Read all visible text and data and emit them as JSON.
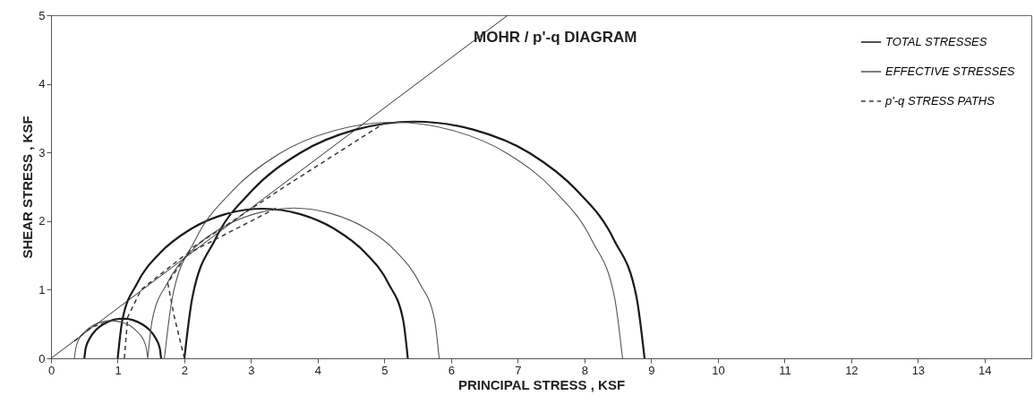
{
  "chart_data": {
    "type": "line",
    "title": "MOHR  / p'-q DIAGRAM",
    "xlabel": "PRINCIPAL STRESS , KSF",
    "ylabel": "SHEAR STRESS , KSF",
    "xlim": [
      0,
      14.7
    ],
    "xticks": [
      0,
      1,
      2,
      3,
      4,
      5,
      6,
      7,
      8,
      9,
      10,
      11,
      12,
      13,
      14
    ],
    "ylim": [
      0,
      5
    ],
    "yticks": [
      0,
      1,
      2,
      3,
      4,
      5
    ],
    "grid": false,
    "legend": "top right",
    "marker": "none",
    "series": [
      {
        "name": "TOTAL STRESSES",
        "color": "#1a1a1a",
        "line_style": "solid",
        "x": [
          0.5,
          0.52,
          0.58,
          0.67,
          0.79,
          0.93,
          1.08,
          1.22,
          1.36,
          1.48,
          1.57,
          1.63,
          1.65,
          null,
          1.0,
          1.07,
          1.29,
          1.64,
          2.09,
          2.61,
          3.18,
          3.74,
          4.26,
          4.71,
          5.06,
          5.28,
          5.35,
          null,
          2.0,
          2.12,
          2.46,
          3.01,
          3.73,
          4.56,
          5.45,
          6.34,
          7.18,
          7.89,
          8.44,
          8.78,
          8.9
        ],
        "values": [
          0,
          0.15,
          0.29,
          0.41,
          0.5,
          0.56,
          0.58,
          0.56,
          0.5,
          0.41,
          0.29,
          0.15,
          0,
          null,
          0,
          0.56,
          1.09,
          1.54,
          1.88,
          2.1,
          2.18,
          2.1,
          1.88,
          1.54,
          1.09,
          0.56,
          0,
          null,
          0,
          0.89,
          1.73,
          2.44,
          2.99,
          3.33,
          3.45,
          3.33,
          2.99,
          2.44,
          1.73,
          0.89,
          0
        ]
      },
      {
        "name": "EFFECTIVE STRESSES",
        "color": "#555555",
        "line_style": "solid",
        "x": [
          0.35,
          0.37,
          0.42,
          0.51,
          0.63,
          0.76,
          0.9,
          1.04,
          1.18,
          1.29,
          1.38,
          1.43,
          1.45,
          null,
          1.45,
          1.52,
          1.74,
          2.09,
          2.54,
          3.07,
          3.64,
          4.2,
          4.73,
          5.18,
          5.53,
          5.75,
          5.82,
          null,
          1.7,
          1.82,
          2.16,
          2.71,
          3.42,
          4.25,
          5.14,
          6.03,
          6.85,
          7.56,
          8.11,
          8.45,
          8.57
        ],
        "values": [
          0,
          0.14,
          0.28,
          0.39,
          0.48,
          0.53,
          0.55,
          0.53,
          0.48,
          0.39,
          0.28,
          0.14,
          0,
          null,
          0,
          0.57,
          1.09,
          1.55,
          1.89,
          2.11,
          2.19,
          2.11,
          1.89,
          1.55,
          1.09,
          0.57,
          0,
          null,
          0,
          0.89,
          1.72,
          2.43,
          2.98,
          3.32,
          3.44,
          3.32,
          2.98,
          2.43,
          1.72,
          0.89,
          0
        ]
      },
      {
        "name": "p'-q STRESS PATHS",
        "color": "#3a3a3a",
        "line_style": "dashed",
        "x": [
          0.35,
          0.6,
          0.9,
          null,
          1.1,
          1.15,
          1.35,
          2.0,
          3.4,
          null,
          2.0,
          1.85,
          1.75,
          2.1,
          3.5,
          5.0
        ],
        "values": [
          0.25,
          0.45,
          0.55,
          null,
          0,
          0.6,
          1.0,
          1.5,
          2.2,
          null,
          0,
          0.6,
          1.1,
          1.6,
          2.5,
          3.43
        ]
      },
      {
        "type": "line",
        "color": "#333333",
        "line_style": "solid",
        "x": [
          0,
          6.85
        ],
        "values": [
          0,
          5
        ]
      }
    ]
  }
}
